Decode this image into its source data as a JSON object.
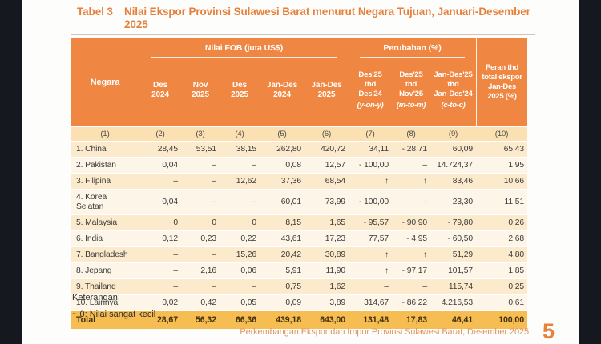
{
  "title": {
    "label": "Tabel 3",
    "text": "Nilai Ekspor Provinsi Sulawesi Barat menurut Negara Tujuan, Januari-Desember\n2025"
  },
  "table": {
    "header": {
      "negara": "Negara",
      "fob_group": "Nilai FOB (juta US$)",
      "change_group": "Perubahan (%)",
      "peran": "Peran thd\ntotal ekspor\nJan-Des\n2025 (%)",
      "fob_cols": [
        "Des\n2024",
        "Nov\n2025",
        "Des\n2025",
        "Jan-Des\n2024",
        "Jan-Des\n2025"
      ],
      "change_cols": [
        {
          "main": "Des'25\nthd\nDes'24",
          "note": "(y-on-y)"
        },
        {
          "main": "Des'25\nthd\nNov'25",
          "note": "(m-to-m)"
        },
        {
          "main": "Jan-Des'25\nthd\nJan-Des'24",
          "note": "(c-to-c)"
        }
      ]
    },
    "col_numbers": [
      "(1)",
      "(2)",
      "(3)",
      "(4)",
      "(5)",
      "(6)",
      "(7)",
      "(8)",
      "(9)",
      "(10)"
    ],
    "rows": [
      {
        "negara": "1. China",
        "values": [
          "28,45",
          "53,51",
          "38,15",
          "262,80",
          "420,72",
          "34,11",
          "- 28,71",
          "60,09",
          "65,43"
        ]
      },
      {
        "negara": "2. Pakistan",
        "values": [
          "0,04",
          "–",
          "–",
          "0,08",
          "12,57",
          "- 100,00",
          "–",
          "14.724,37",
          "1,95"
        ]
      },
      {
        "negara": "3. Filipina",
        "values": [
          "–",
          "–",
          "12,62",
          "37,36",
          "68,54",
          "↑",
          "↑",
          "83,46",
          "10,66"
        ]
      },
      {
        "negara": "4. Korea Selatan",
        "values": [
          "0,04",
          "–",
          "–",
          "60,01",
          "73,99",
          "- 100,00",
          "–",
          "23,30",
          "11,51"
        ]
      },
      {
        "negara": "5. Malaysia",
        "values": [
          "~ 0",
          "~ 0",
          "~ 0",
          "8,15",
          "1,65",
          "- 95,57",
          "- 90,90",
          "- 79,80",
          "0,26"
        ]
      },
      {
        "negara": "6. India",
        "values": [
          "0,12",
          "0,23",
          "0,22",
          "43,61",
          "17,23",
          "77,57",
          "- 4,95",
          "- 60,50",
          "2,68"
        ]
      },
      {
        "negara": "7. Bangladesh",
        "values": [
          "–",
          "–",
          "15,26",
          "20,42",
          "30,89",
          "↑",
          "↑",
          "51,29",
          "4,80"
        ]
      },
      {
        "negara": "8. Jepang",
        "values": [
          "–",
          "2,16",
          "0,06",
          "5,91",
          "11,90",
          "↑",
          "- 97,17",
          "101,57",
          "1,85"
        ]
      },
      {
        "negara": "9. Thailand",
        "values": [
          "–",
          "–",
          "–",
          "0,75",
          "1,62",
          "–",
          "–",
          "115,74",
          "0,25"
        ]
      },
      {
        "negara": "10. Lainnya",
        "values": [
          "0,02",
          "0,42",
          "0,05",
          "0,09",
          "3,89",
          "314,67",
          "- 86,22",
          "4.216,53",
          "0,61"
        ]
      }
    ],
    "total": {
      "label": "Total",
      "values": [
        "28,67",
        "56,32",
        "66,36",
        "439,18",
        "643,00",
        "131,48",
        "17,83",
        "46,41",
        "100,00"
      ]
    }
  },
  "notes": {
    "heading": "Keterangan:",
    "items": [
      "~ 0: Nilai sangat kecil"
    ]
  },
  "footer": {
    "caption": "Perkembangan Ekspor dan Impor Provinsi Sulawesi Barat, Desember 2025",
    "page_number": "5"
  },
  "colors": {
    "header_orange": "#EF8642",
    "subheader_tan": "#FBE1B1",
    "row_odd": "#FBEACC",
    "row_even": "#FDF6E8",
    "total_yellow": "#F6BD52",
    "title_orange": "#E5803C",
    "footer_orange": "#DE935F",
    "page_accent": "#E8813C",
    "sidebar_dark": "#16181F"
  }
}
